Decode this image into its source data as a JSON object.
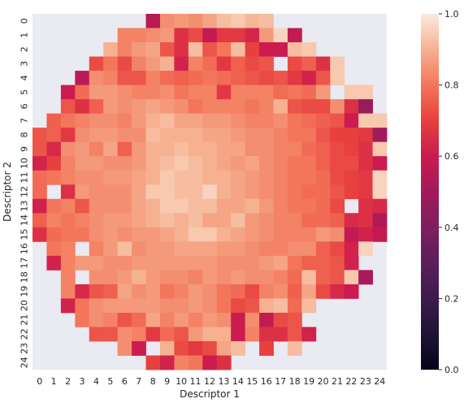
{
  "chart_data": {
    "type": "heatmap",
    "title": "",
    "xlabel": "Descriptor 1",
    "ylabel": "Descriptor 2",
    "x_ticks": [
      "0",
      "1",
      "2",
      "3",
      "4",
      "5",
      "6",
      "7",
      "8",
      "9",
      "10",
      "11",
      "12",
      "13",
      "14",
      "15",
      "16",
      "17",
      "18",
      "19",
      "20",
      "21",
      "22",
      "23",
      "24"
    ],
    "y_ticks": [
      "0",
      "1",
      "2",
      "3",
      "4",
      "5",
      "6",
      "7",
      "8",
      "9",
      "10",
      "11",
      "12",
      "13",
      "14",
      "15",
      "16",
      "17",
      "18",
      "19",
      "20",
      "21",
      "22",
      "23",
      "24"
    ],
    "colorbar": {
      "min": 0.0,
      "max": 1.0,
      "ticks": [
        "0.0",
        "0.2",
        "0.4",
        "0.6",
        "0.8",
        "1.0"
      ],
      "colormap": "rocket"
    },
    "missing_color": "#eaeaf2",
    "values": [
      [
        null,
        null,
        null,
        null,
        null,
        null,
        null,
        null,
        0.55,
        0.84,
        0.86,
        0.84,
        0.88,
        0.92,
        0.94,
        0.91,
        0.92,
        null,
        null,
        null,
        null,
        null,
        null,
        null,
        null
      ],
      [
        null,
        null,
        null,
        null,
        null,
        null,
        0.82,
        0.82,
        0.84,
        0.86,
        0.66,
        0.72,
        0.58,
        0.68,
        0.68,
        0.63,
        0.86,
        0.96,
        0.58,
        null,
        null,
        null,
        null,
        null,
        null
      ],
      [
        null,
        null,
        null,
        null,
        null,
        0.9,
        0.82,
        0.86,
        0.88,
        0.74,
        0.66,
        0.92,
        0.74,
        0.8,
        0.92,
        0.7,
        0.6,
        0.6,
        0.92,
        0.94,
        null,
        null,
        null,
        null,
        null
      ],
      [
        null,
        null,
        null,
        null,
        0.72,
        0.8,
        0.72,
        0.82,
        0.86,
        0.9,
        0.62,
        0.82,
        0.78,
        0.68,
        0.76,
        0.72,
        0.74,
        null,
        0.72,
        0.76,
        0.66,
        0.94,
        null,
        null,
        null
      ],
      [
        null,
        null,
        null,
        0.56,
        0.84,
        0.82,
        0.74,
        0.74,
        0.82,
        0.78,
        0.76,
        0.78,
        0.8,
        0.78,
        0.76,
        0.74,
        0.72,
        0.74,
        0.68,
        0.62,
        0.74,
        0.94,
        null,
        null,
        null
      ],
      [
        null,
        null,
        0.6,
        0.78,
        0.86,
        0.86,
        0.84,
        0.82,
        0.82,
        0.84,
        0.8,
        0.82,
        0.82,
        0.68,
        0.82,
        0.82,
        0.82,
        0.78,
        0.8,
        0.78,
        0.86,
        null,
        0.94,
        0.94,
        null
      ],
      [
        null,
        null,
        0.74,
        0.66,
        0.76,
        0.86,
        0.84,
        0.86,
        0.88,
        0.86,
        0.84,
        0.8,
        0.82,
        0.82,
        0.82,
        0.8,
        0.82,
        0.9,
        0.74,
        0.72,
        0.72,
        0.84,
        0.66,
        0.48,
        null
      ],
      [
        null,
        0.76,
        0.8,
        0.82,
        0.84,
        0.84,
        0.82,
        0.86,
        0.9,
        0.92,
        0.88,
        0.88,
        0.86,
        0.86,
        0.84,
        0.82,
        0.82,
        0.84,
        0.8,
        0.78,
        0.76,
        0.74,
        0.6,
        0.94,
        0.94
      ],
      [
        0.74,
        0.76,
        0.68,
        0.84,
        0.86,
        0.86,
        0.84,
        0.84,
        0.92,
        0.9,
        0.9,
        0.9,
        0.88,
        0.88,
        0.86,
        0.84,
        0.84,
        0.82,
        0.8,
        0.8,
        0.74,
        0.7,
        0.7,
        0.68,
        0.5
      ],
      [
        0.74,
        0.64,
        0.84,
        0.86,
        0.82,
        0.88,
        0.76,
        0.86,
        0.9,
        0.9,
        0.92,
        0.9,
        0.9,
        0.88,
        0.88,
        0.84,
        0.84,
        0.82,
        0.82,
        0.78,
        0.76,
        0.72,
        0.7,
        0.66,
        0.94
      ],
      [
        0.62,
        0.7,
        0.82,
        0.86,
        0.86,
        0.84,
        0.84,
        0.86,
        0.9,
        0.92,
        0.94,
        0.92,
        0.9,
        0.88,
        0.86,
        0.88,
        0.84,
        0.82,
        0.8,
        0.8,
        0.76,
        0.72,
        0.72,
        0.66,
        0.6
      ],
      [
        0.78,
        0.8,
        0.82,
        0.84,
        0.84,
        0.86,
        0.86,
        0.88,
        0.9,
        0.94,
        0.92,
        0.92,
        0.9,
        0.9,
        0.88,
        0.86,
        0.84,
        0.82,
        0.8,
        0.8,
        0.78,
        0.72,
        0.7,
        0.68,
        0.96
      ],
      [
        0.78,
        null,
        0.66,
        0.86,
        0.84,
        0.84,
        0.84,
        0.88,
        0.94,
        0.94,
        0.92,
        0.92,
        0.96,
        0.9,
        0.88,
        0.86,
        0.84,
        0.82,
        0.8,
        0.78,
        0.78,
        0.74,
        0.7,
        0.68,
        0.96
      ],
      [
        0.62,
        0.8,
        0.82,
        0.74,
        0.84,
        0.84,
        0.84,
        0.88,
        0.9,
        0.94,
        0.94,
        0.92,
        0.92,
        0.88,
        0.88,
        0.9,
        0.86,
        0.82,
        0.8,
        0.8,
        0.78,
        0.72,
        null,
        0.66,
        0.64
      ],
      [
        0.76,
        0.82,
        0.8,
        0.82,
        0.84,
        0.86,
        0.86,
        0.88,
        0.9,
        0.92,
        0.9,
        0.92,
        0.88,
        0.88,
        0.92,
        0.86,
        0.84,
        0.82,
        0.82,
        0.78,
        0.78,
        0.76,
        0.64,
        0.66,
        0.54
      ],
      [
        0.66,
        0.78,
        0.8,
        0.8,
        0.84,
        0.86,
        0.84,
        0.86,
        0.86,
        0.88,
        0.9,
        0.94,
        0.94,
        0.9,
        0.88,
        0.86,
        0.84,
        0.82,
        0.82,
        0.82,
        0.86,
        0.84,
        0.58,
        0.62,
        0.58
      ],
      [
        null,
        0.8,
        0.82,
        null,
        0.82,
        0.86,
        0.92,
        0.84,
        0.86,
        0.86,
        0.88,
        0.88,
        0.88,
        0.86,
        0.86,
        0.84,
        0.82,
        0.82,
        0.84,
        0.84,
        0.76,
        0.72,
        0.62,
        0.96,
        null
      ],
      [
        null,
        0.62,
        0.82,
        0.86,
        0.86,
        0.84,
        0.84,
        0.86,
        0.86,
        0.86,
        0.86,
        0.86,
        0.86,
        0.84,
        0.84,
        0.84,
        0.86,
        0.88,
        0.8,
        0.76,
        0.76,
        0.74,
        0.62,
        null,
        null
      ],
      [
        null,
        null,
        0.82,
        null,
        0.84,
        0.84,
        0.86,
        0.9,
        0.86,
        0.84,
        0.84,
        0.82,
        0.86,
        0.84,
        0.86,
        0.84,
        0.84,
        0.82,
        0.78,
        0.92,
        0.76,
        0.74,
        0.94,
        0.52,
        null
      ],
      [
        null,
        null,
        0.82,
        0.64,
        0.74,
        0.76,
        0.88,
        0.84,
        0.86,
        0.8,
        0.82,
        0.86,
        0.84,
        0.8,
        0.78,
        0.72,
        0.82,
        0.84,
        0.76,
        0.88,
        0.72,
        0.64,
        0.6,
        null,
        null
      ],
      [
        null,
        null,
        0.62,
        0.8,
        0.84,
        0.86,
        0.86,
        0.86,
        0.86,
        0.84,
        0.84,
        0.86,
        0.84,
        0.8,
        0.72,
        0.74,
        0.9,
        0.92,
        0.78,
        0.92,
        null,
        null,
        null,
        null,
        null
      ],
      [
        null,
        null,
        null,
        0.8,
        0.84,
        0.82,
        0.74,
        0.78,
        0.88,
        0.82,
        0.86,
        0.82,
        0.86,
        0.84,
        0.6,
        0.84,
        0.58,
        0.72,
        0.74,
        null,
        null,
        null,
        null,
        null,
        null
      ],
      [
        null,
        null,
        null,
        null,
        0.74,
        0.74,
        0.84,
        0.82,
        0.68,
        0.78,
        0.74,
        0.86,
        0.9,
        0.9,
        0.6,
        0.82,
        0.66,
        0.66,
        0.74,
        0.62,
        null,
        null,
        null,
        null,
        null
      ],
      [
        null,
        null,
        null,
        null,
        null,
        null,
        0.84,
        0.6,
        null,
        0.9,
        0.72,
        0.68,
        0.72,
        0.88,
        0.92,
        null,
        0.7,
        null,
        0.92,
        null,
        null,
        null,
        null,
        null,
        null
      ],
      [
        null,
        null,
        null,
        null,
        null,
        null,
        null,
        null,
        0.7,
        0.62,
        0.82,
        0.8,
        0.6,
        0.66,
        null,
        null,
        null,
        null,
        null,
        null,
        null,
        null,
        null,
        null,
        null
      ]
    ]
  }
}
